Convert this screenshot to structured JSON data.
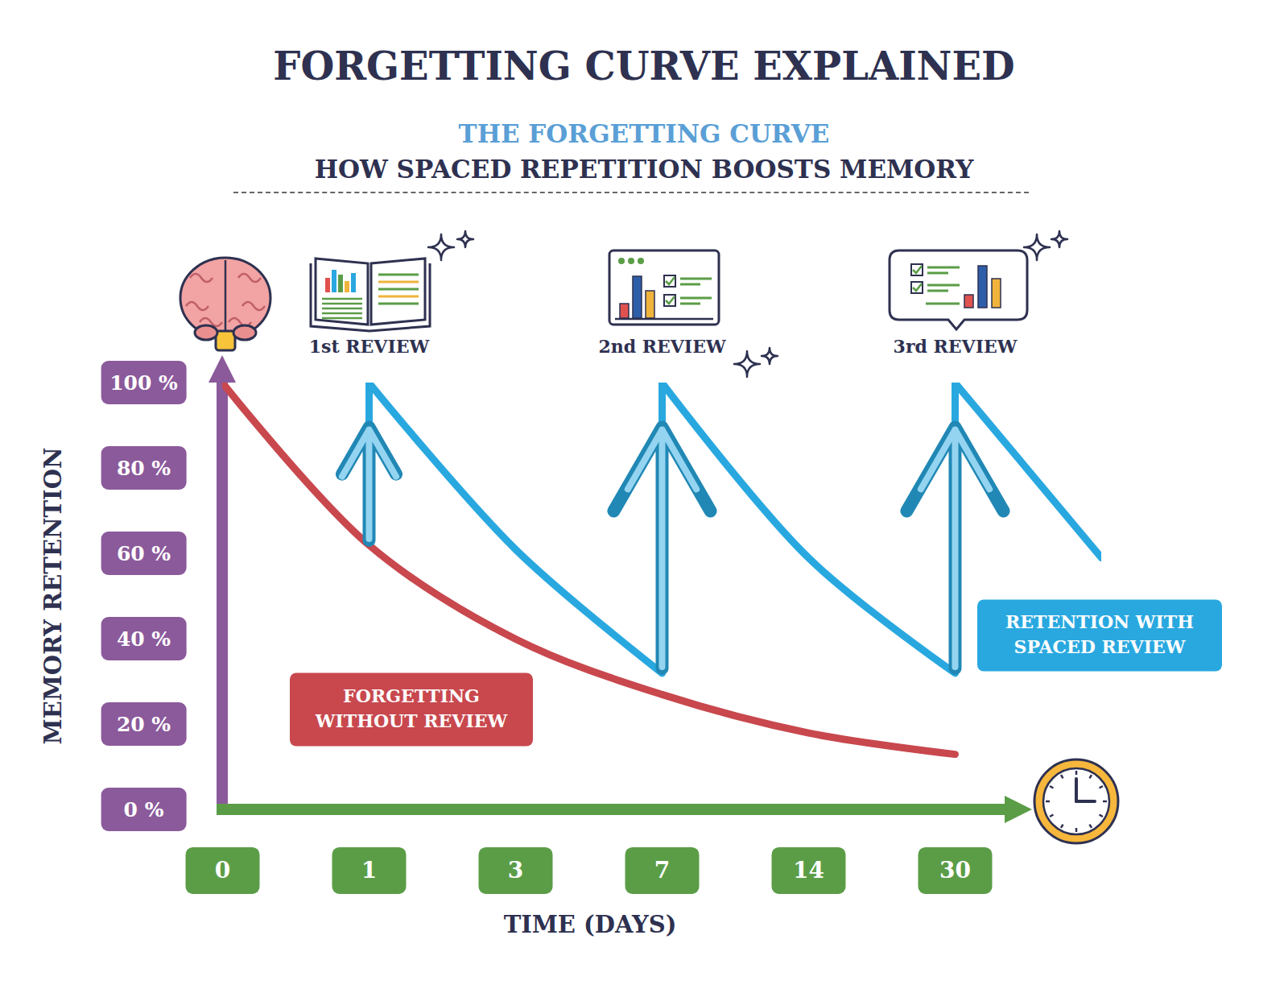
{
  "chart_data": {
    "type": "line",
    "title": "FORGETTING CURVE EXPLAINED",
    "subtitle": [
      "THE FORGETTING CURVE",
      "HOW SPACED REPETITION BOOSTS MEMORY"
    ],
    "x_label": "TIME (DAYS)",
    "y_label": "MEMORY RETENTION",
    "categories": [
      "0",
      "1",
      "3",
      "7",
      "14",
      "30",
      null
    ],
    "ylim": [
      0,
      100
    ],
    "yticks": [
      {
        "value": 0,
        "label": "0 %"
      },
      {
        "value": 20,
        "label": "20 %"
      },
      {
        "value": 40,
        "label": "40 %"
      },
      {
        "value": 60,
        "label": "60 %"
      },
      {
        "value": 80,
        "label": "80 %"
      },
      {
        "value": 100,
        "label": "100 %"
      }
    ],
    "grid": false,
    "series": [
      {
        "name": "FORGETTING WITHOUT REVIEW",
        "color": "#c8484e",
        "values": [
          100,
          62,
          40,
          27,
          18,
          13,
          null
        ]
      },
      {
        "name": "RETENTION WITH SPACED REVIEW",
        "color": "#29a8e0",
        "values": [
          null,
          100,
          61,
          100,
          59,
          100,
          59
        ],
        "reviews": [
          {
            "label": "1st REVIEW",
            "category": "1",
            "before": 62
          },
          {
            "label": "2nd REVIEW",
            "category": "7",
            "before": 32
          },
          {
            "label": "3rd REVIEW",
            "category": "30",
            "before": 32
          }
        ]
      }
    ]
  }
}
